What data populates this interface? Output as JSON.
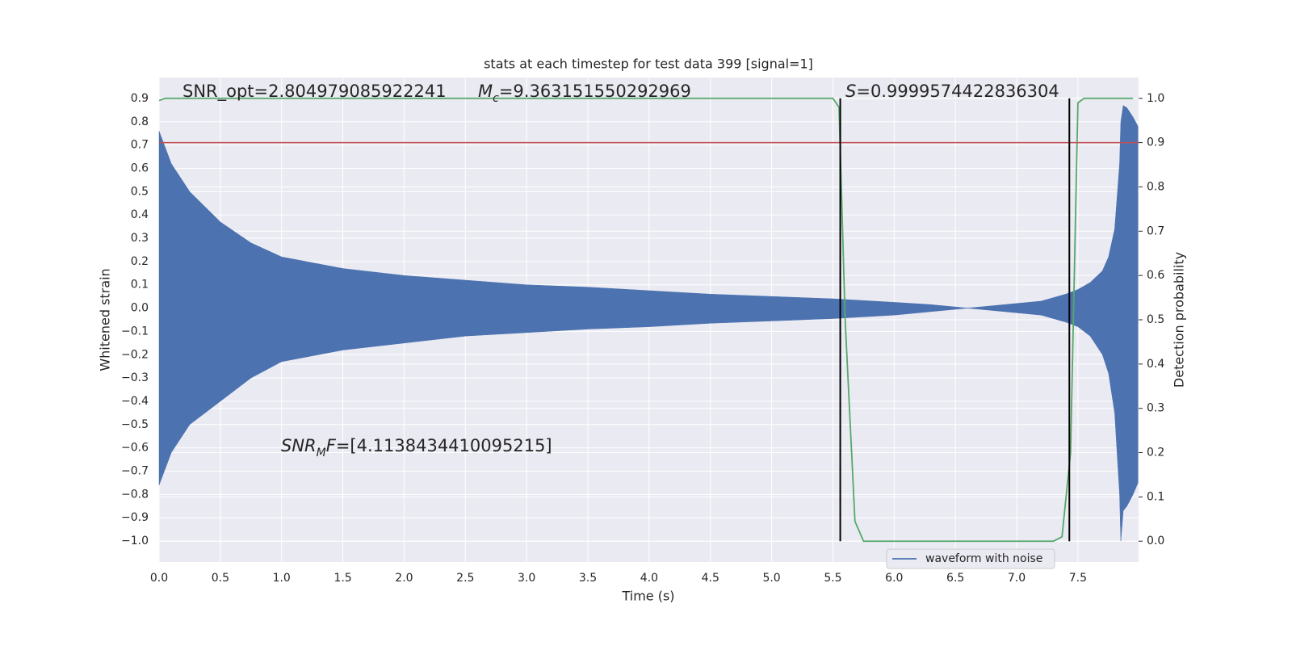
{
  "chart_data": {
    "type": "line",
    "title": "stats at each timestep for test data 399 [signal=1]",
    "xlabel": "Time (s)",
    "ylabel": "Whitened strain",
    "y2label": "Detection probability",
    "xlim": [
      0,
      7.995
    ],
    "ylim": [
      -1.09,
      0.99
    ],
    "y2lim": [
      -0.047,
      1.047
    ],
    "grid": true,
    "background": "#eaeaf2",
    "legend": "lower right",
    "xticks": [
      {
        "value": 0,
        "label": "0.0"
      },
      0.5,
      {
        "value": 1,
        "label": "1.0"
      },
      1.5,
      {
        "value": 2,
        "label": "2.0"
      },
      2.5,
      {
        "value": 3,
        "label": "3.0"
      },
      3.5,
      {
        "value": 4,
        "label": "4.0"
      },
      4.5,
      {
        "value": 5,
        "label": "5.0"
      },
      5.5,
      {
        "value": 6,
        "label": "6.0"
      },
      6.5,
      {
        "value": 7,
        "label": "7.0"
      },
      7.5
    ],
    "yticks": [
      0.9,
      0.8,
      0.7,
      0.6,
      0.5,
      0.4,
      0.3,
      0.2,
      0.1,
      {
        "value": 0,
        "label": "0.0"
      },
      {
        "value": -0.1,
        "label": "−0.1"
      },
      {
        "value": -0.2,
        "label": "−0.2"
      },
      {
        "value": -0.3,
        "label": "−0.3"
      },
      {
        "value": -0.4,
        "label": "−0.4"
      },
      {
        "value": -0.5,
        "label": "−0.5"
      },
      {
        "value": -0.6,
        "label": "−0.6"
      },
      {
        "value": -0.7,
        "label": "−0.7"
      },
      {
        "value": -0.8,
        "label": "−0.8"
      },
      {
        "value": -0.9,
        "label": "−0.9"
      },
      {
        "value": -1.0,
        "label": "−1.0"
      }
    ],
    "y2ticks": [
      {
        "value": 0,
        "label": "0.0"
      },
      0.1,
      0.2,
      0.3,
      0.4,
      0.5,
      0.6,
      0.7,
      0.8,
      0.9,
      {
        "value": 1,
        "label": "1.0"
      }
    ],
    "series": [
      {
        "name": "waveform with noise",
        "color": "#4c72b0",
        "x": [
          0,
          0.1,
          0.25,
          0.5,
          0.75,
          1,
          1.5,
          2,
          2.5,
          3,
          3.5,
          4,
          4.5,
          5,
          5.5,
          6,
          6.3,
          6.6,
          6.9,
          7.2,
          7.4,
          7.5,
          7.6,
          7.7,
          7.75,
          7.8,
          7.84,
          7.85,
          7.87,
          7.9,
          7.95,
          7.99
        ],
        "upper": [
          0.76,
          0.62,
          0.5,
          0.37,
          0.28,
          0.22,
          0.17,
          0.14,
          0.12,
          0.1,
          0.09,
          0.075,
          0.06,
          0.05,
          0.04,
          0.025,
          0.015,
          0.0,
          0.015,
          0.03,
          0.06,
          0.08,
          0.11,
          0.16,
          0.22,
          0.34,
          0.62,
          0.8,
          0.87,
          0.86,
          0.82,
          0.78
        ],
        "lower": [
          -0.76,
          -0.62,
          -0.5,
          -0.4,
          -0.3,
          -0.23,
          -0.18,
          -0.15,
          -0.12,
          -0.105,
          -0.09,
          -0.08,
          -0.065,
          -0.055,
          -0.045,
          -0.03,
          -0.015,
          0.0,
          -0.015,
          -0.03,
          -0.06,
          -0.08,
          -0.12,
          -0.2,
          -0.28,
          -0.45,
          -0.8,
          -1.0,
          -0.87,
          -0.85,
          -0.8,
          -0.75
        ]
      },
      {
        "color": "#55a868",
        "axis": "y2",
        "x": [
          0,
          0.05,
          5.5,
          5.55,
          5.6,
          5.68,
          5.75,
          7.3,
          7.37,
          7.44,
          7.5,
          7.55,
          7.95
        ],
        "values": [
          0.995,
          1.0,
          1.0,
          0.98,
          0.5,
          0.045,
          0.0,
          0.0,
          0.01,
          0.2,
          0.99,
          1.0,
          1.0
        ]
      }
    ],
    "threshold": {
      "value": 0.9,
      "axis": "y2",
      "color": "#c44e52"
    },
    "vlines": {
      "x": [
        5.56,
        7.43
      ],
      "ymin": 0,
      "ymax": 1,
      "axis": "y2",
      "color": "#000000"
    },
    "annotations": [
      [
        {
          "text": "SNR_opt=2.804979085922241"
        }
      ],
      [
        {
          "text": "M",
          "style": "italic"
        },
        {
          "text": "c",
          "style": "sub"
        },
        {
          "text": "=9.363151550292969"
        }
      ],
      [
        {
          "text": "S",
          "style": "italic"
        },
        {
          "text": "=0.9999574422836304"
        }
      ],
      [
        {
          "text": "SNR",
          "style": "italic"
        },
        {
          "text": "M",
          "style": "sub"
        },
        {
          "text": "F",
          "style": "italic"
        },
        {
          "text": "=[4.1138434410095215]"
        }
      ]
    ]
  }
}
